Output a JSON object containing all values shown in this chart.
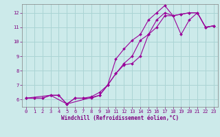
{
  "xlabel": "Windchill (Refroidissement éolien,°C)",
  "bg_color": "#cceaea",
  "grid_color": "#aad4d4",
  "line_color": "#990099",
  "xlim": [
    -0.5,
    23.5
  ],
  "ylim": [
    5.5,
    12.6
  ],
  "yticks": [
    6,
    7,
    8,
    9,
    10,
    11,
    12
  ],
  "xticks": [
    0,
    1,
    2,
    3,
    4,
    5,
    6,
    7,
    8,
    9,
    10,
    11,
    12,
    13,
    14,
    15,
    16,
    17,
    18,
    19,
    20,
    21,
    22,
    23
  ],
  "line1_x": [
    0,
    1,
    2,
    3,
    4,
    5,
    6,
    7,
    8,
    9,
    10,
    11,
    12,
    13,
    14,
    15,
    16,
    17,
    18,
    19,
    20,
    21,
    22,
    23
  ],
  "line1_y": [
    6.1,
    6.1,
    6.1,
    6.3,
    6.3,
    5.7,
    6.1,
    6.1,
    6.1,
    6.3,
    7.0,
    8.8,
    9.5,
    10.1,
    10.5,
    11.5,
    12.0,
    12.5,
    11.8,
    11.9,
    12.0,
    12.0,
    11.0,
    11.1
  ],
  "line2_x": [
    0,
    1,
    2,
    3,
    4,
    5,
    6,
    7,
    8,
    9,
    10,
    11,
    12,
    13,
    14,
    15,
    16,
    17,
    18,
    19,
    20,
    21,
    22,
    23
  ],
  "line2_y": [
    6.1,
    6.1,
    6.1,
    6.3,
    6.3,
    5.7,
    6.1,
    6.1,
    6.2,
    6.5,
    7.0,
    7.8,
    8.5,
    9.0,
    10.1,
    10.5,
    11.5,
    12.0,
    11.8,
    11.9,
    12.0,
    12.0,
    11.0,
    11.1
  ],
  "line3_x": [
    0,
    3,
    5,
    9,
    10,
    11,
    12,
    13,
    14,
    15,
    16,
    17,
    18,
    19,
    20,
    21,
    22,
    23
  ],
  "line3_y": [
    6.1,
    6.3,
    5.7,
    6.3,
    7.0,
    7.8,
    8.4,
    8.5,
    9.0,
    10.5,
    11.0,
    11.8,
    11.8,
    10.5,
    11.5,
    12.0,
    11.0,
    11.1
  ],
  "font_color": "#800080",
  "label_fontsize": 5.5,
  "tick_fontsize": 5.0
}
